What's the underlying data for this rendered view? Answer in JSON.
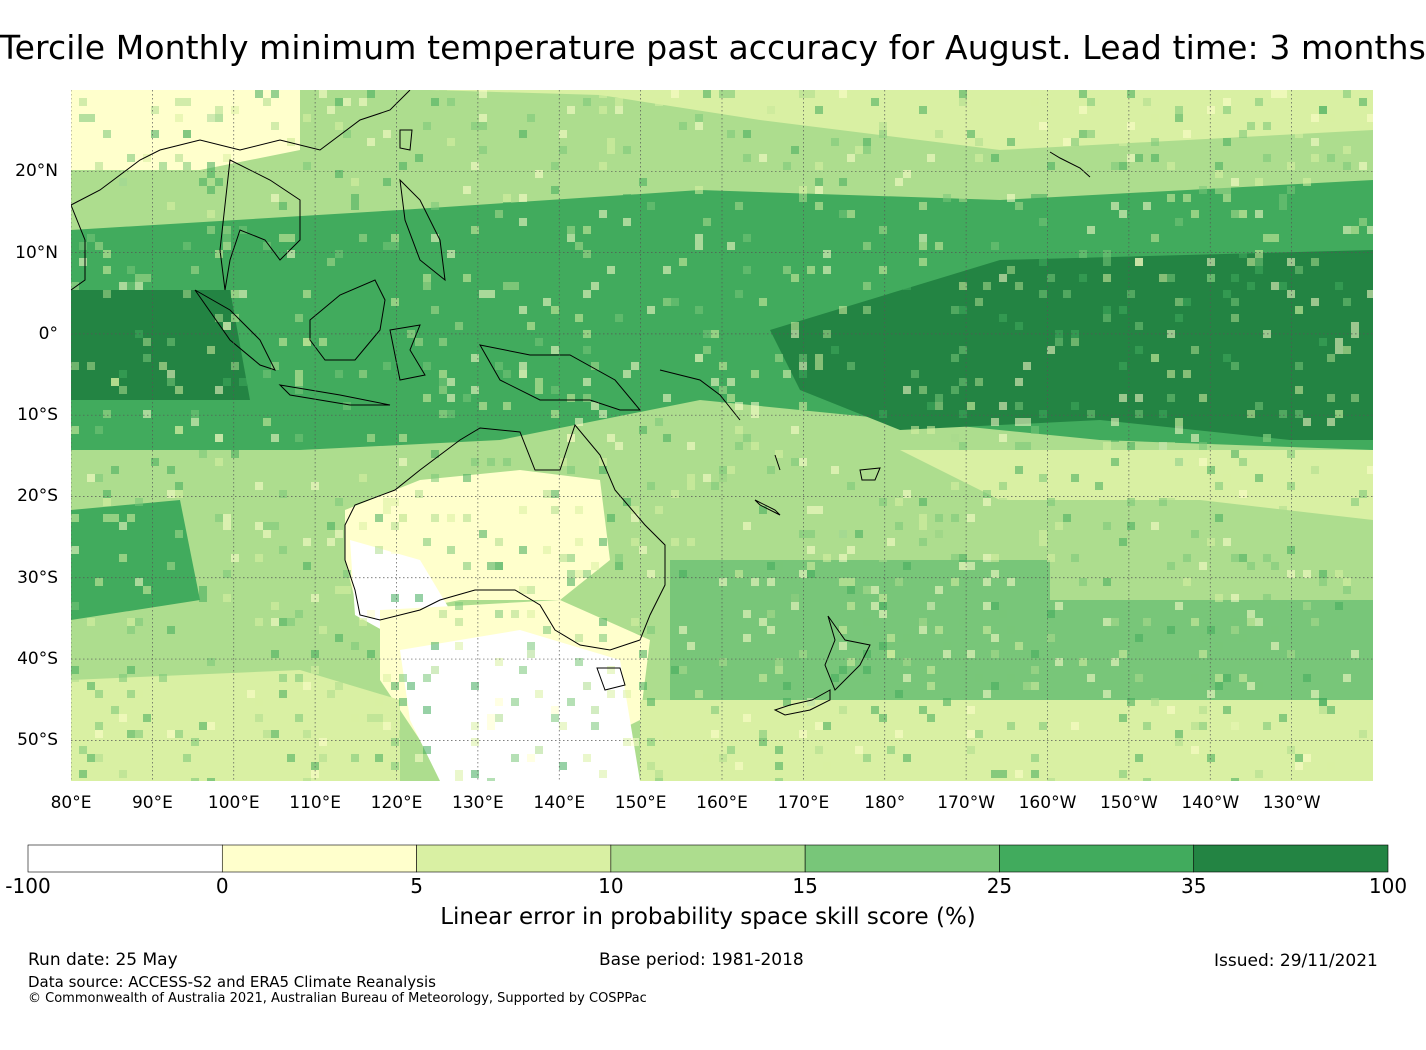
{
  "title": "Tercile Monthly minimum temperature past accuracy for August. Lead time: 3 months",
  "map": {
    "lat_labels": [
      "20°N",
      "10°N",
      "0°",
      "10°S",
      "20°S",
      "30°S",
      "40°S",
      "50°S"
    ],
    "lon_labels": [
      "80°E",
      "90°E",
      "100°E",
      "110°E",
      "120°E",
      "130°E",
      "140°E",
      "150°E",
      "160°E",
      "170°E",
      "180°",
      "170°W",
      "160°W",
      "150°W",
      "140°W",
      "130°W"
    ],
    "lat_values": [
      20,
      10,
      0,
      -10,
      -20,
      -30,
      -40,
      -50
    ],
    "lon_values": [
      80,
      90,
      100,
      110,
      120,
      130,
      140,
      150,
      160,
      170,
      180,
      190,
      200,
      210,
      220,
      230
    ],
    "region": {
      "lon_min": 80,
      "lon_max": 240,
      "lat_min": -55,
      "lat_max": 30
    }
  },
  "colorbar": {
    "boundaries": [
      "-100",
      "0",
      "5",
      "10",
      "15",
      "25",
      "35",
      "100"
    ],
    "colors": [
      "#ffffff",
      "#ffffcc",
      "#d9f0a3",
      "#addd8e",
      "#78c679",
      "#41ab5d",
      "#238443"
    ],
    "label": "Linear error in probability space skill score (%)"
  },
  "footer": {
    "run_date": "Run date: 25 May",
    "base_period": "Base period: 1981-2018",
    "issued": "Issued: 29/11/2021",
    "data_source": "Data source: ACCESS-S2 and ERA5 Climate Reanalysis",
    "copyright": "© Commonwealth of Australia 2021, Australian Bureau of Meteorology, Supported by COSPPac"
  }
}
